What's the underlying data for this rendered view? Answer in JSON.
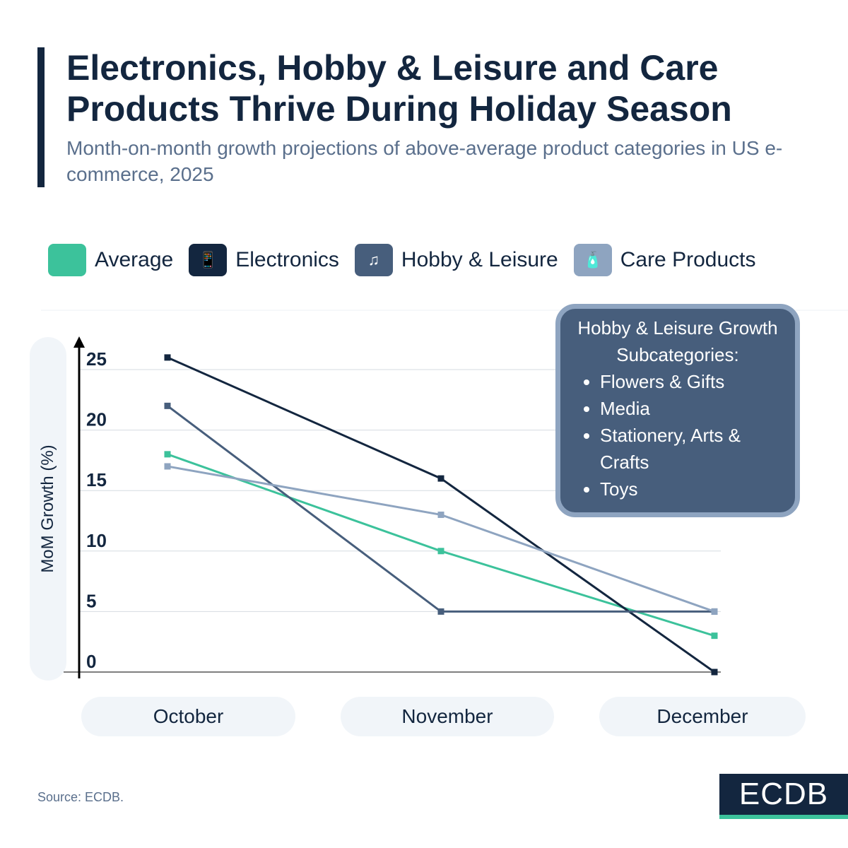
{
  "header": {
    "title": "Electronics, Hobby & Leisure and Care Products Thrive During Holiday Season",
    "subtitle": "Month-on-month growth projections of above-average product categories in US e-commerce, 2025"
  },
  "chart_data": {
    "type": "line",
    "title": "Electronics, Hobby & Leisure and Care Products Thrive During Holiday Season",
    "ylabel": "MoM Growth (%)",
    "categories": [
      "October",
      "November",
      "December"
    ],
    "yticks": [
      0,
      5,
      10,
      15,
      20,
      25
    ],
    "ylim": [
      0,
      27
    ],
    "grid": true,
    "legend_placement": "top",
    "series": [
      {
        "name": "Average",
        "values": [
          18,
          10,
          3
        ],
        "color": "#3cc29b",
        "icon": "none"
      },
      {
        "name": "Electronics",
        "values": [
          26,
          16,
          0
        ],
        "color": "#13263f",
        "icon": "devices-icon"
      },
      {
        "name": "Hobby & Leisure",
        "values": [
          22,
          5,
          5
        ],
        "color": "#475e7c",
        "icon": "hobby-icon"
      },
      {
        "name": "Care Products",
        "values": [
          17,
          13,
          5
        ],
        "color": "#8ea4c0",
        "icon": "care-bottles-icon"
      }
    ]
  },
  "callout": {
    "title": "Hobby & Leisure Growth Subcategories:",
    "items": [
      "Flowers & Gifts",
      "Media",
      "Stationery, Arts & Crafts",
      "Toys"
    ]
  },
  "footer": {
    "source": "Source: ECDB.",
    "logo": "ECDB"
  }
}
